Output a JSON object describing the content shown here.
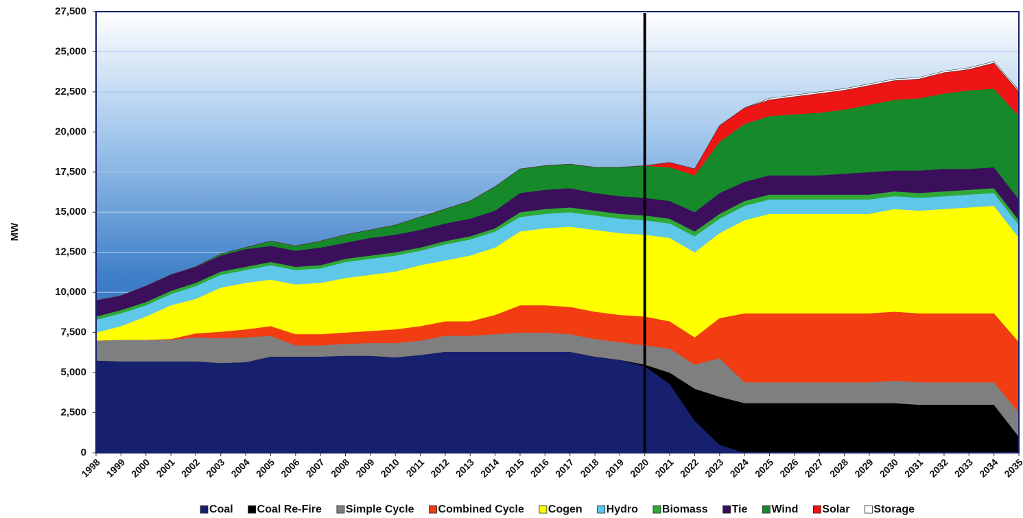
{
  "chart_data": {
    "type": "stacked_area",
    "y_label": "MW",
    "categories": [
      "1998",
      "1999",
      "2000",
      "2001",
      "2002",
      "2003",
      "2004",
      "2005",
      "2006",
      "2007",
      "2008",
      "2009",
      "2010",
      "2011",
      "2012",
      "2013",
      "2014",
      "2015",
      "2016",
      "2017",
      "2018",
      "2019",
      "2020",
      "2021",
      "2022",
      "2023",
      "2024",
      "2025",
      "2026",
      "2027",
      "2028",
      "2029",
      "2030",
      "2031",
      "2032",
      "2033",
      "2034",
      "2035"
    ],
    "vline_category": "2020",
    "ylim": [
      0,
      27500
    ],
    "yticks": [
      0,
      {
        "value": 2500,
        "label": "2,500"
      },
      {
        "value": 5000,
        "label": "5,000"
      },
      {
        "value": 7500,
        "label": "7,500"
      },
      {
        "value": 10000,
        "label": "10,000"
      },
      {
        "value": 12500,
        "label": "12,500"
      },
      {
        "value": 15000,
        "label": "15,000"
      },
      {
        "value": 17500,
        "label": "17,500"
      },
      {
        "value": 20000,
        "label": "20,000"
      },
      {
        "value": 22500,
        "label": "22,500"
      },
      {
        "value": 25000,
        "label": "25,000"
      },
      {
        "value": 27500,
        "label": "27,500"
      }
    ],
    "grid": true,
    "legend": "bottom",
    "series": [
      {
        "name": "Coal",
        "color": "#17206e",
        "values": [
          5750,
          5700,
          5700,
          5700,
          5700,
          5600,
          5650,
          6000,
          6000,
          6000,
          6050,
          6050,
          5950,
          6100,
          6300,
          6300,
          6300,
          6300,
          6300,
          6300,
          6000,
          5800,
          5400,
          4300,
          2000,
          500,
          0,
          0,
          0,
          0,
          0,
          0,
          0,
          0,
          0,
          0,
          0,
          0
        ]
      },
      {
        "name": "Coal Re-Fire",
        "color": "#000000",
        "values": [
          0,
          0,
          0,
          0,
          0,
          0,
          0,
          0,
          0,
          0,
          0,
          0,
          0,
          0,
          0,
          0,
          0,
          0,
          0,
          0,
          0,
          0,
          100,
          700,
          2000,
          3000,
          3100,
          3100,
          3100,
          3100,
          3100,
          3100,
          3100,
          3000,
          3000,
          3000,
          3000,
          1000
        ]
      },
      {
        "name": "Simple Cycle",
        "color": "#7f7f7f",
        "values": [
          1250,
          1350,
          1350,
          1350,
          1500,
          1550,
          1550,
          1300,
          700,
          700,
          750,
          800,
          900,
          900,
          1000,
          1000,
          1100,
          1200,
          1200,
          1100,
          1100,
          1100,
          1200,
          1500,
          1500,
          2400,
          1300,
          1300,
          1300,
          1300,
          1300,
          1300,
          1400,
          1400,
          1400,
          1400,
          1400,
          1500
        ]
      },
      {
        "name": "Combined Cycle",
        "color": "#f23d12",
        "values": [
          0,
          0,
          0,
          50,
          250,
          400,
          500,
          600,
          700,
          700,
          700,
          750,
          850,
          900,
          900,
          900,
          1200,
          1700,
          1700,
          1700,
          1700,
          1700,
          1800,
          1700,
          1700,
          2500,
          4300,
          4300,
          4300,
          4300,
          4300,
          4300,
          4300,
          4300,
          4300,
          4300,
          4300,
          4400
        ]
      },
      {
        "name": "Cogen",
        "color": "#ffff00",
        "values": [
          500,
          850,
          1450,
          2100,
          2150,
          2750,
          2900,
          2900,
          3100,
          3200,
          3400,
          3500,
          3600,
          3800,
          3800,
          4100,
          4200,
          4600,
          4800,
          5000,
          5100,
          5100,
          5100,
          5200,
          5300,
          5300,
          5800,
          6200,
          6200,
          6200,
          6200,
          6200,
          6400,
          6400,
          6500,
          6600,
          6700,
          6500
        ]
      },
      {
        "name": "Hydro",
        "color": "#5fc7e8",
        "values": [
          800,
          800,
          700,
          700,
          800,
          800,
          800,
          900,
          900,
          900,
          1000,
          1000,
          1000,
          900,
          1000,
          1000,
          1000,
          900,
          900,
          900,
          900,
          900,
          900,
          900,
          1000,
          900,
          900,
          900,
          900,
          900,
          900,
          900,
          800,
          800,
          800,
          800,
          800,
          800
        ]
      },
      {
        "name": "Biomass",
        "color": "#2fa836",
        "values": [
          200,
          200,
          200,
          200,
          200,
          200,
          200,
          200,
          200,
          200,
          200,
          200,
          200,
          200,
          200,
          200,
          200,
          300,
          300,
          300,
          300,
          300,
          300,
          300,
          300,
          300,
          300,
          300,
          300,
          300,
          300,
          300,
          300,
          300,
          300,
          300,
          300,
          300
        ]
      },
      {
        "name": "Tie",
        "color": "#3b0f5c",
        "values": [
          1000,
          900,
          1000,
          1000,
          1000,
          1000,
          1100,
          1000,
          1000,
          1100,
          1000,
          1100,
          1100,
          1100,
          1100,
          1100,
          1100,
          1200,
          1200,
          1200,
          1100,
          1100,
          1100,
          1100,
          1200,
          1300,
          1200,
          1200,
          1200,
          1200,
          1300,
          1400,
          1300,
          1400,
          1400,
          1300,
          1300,
          1300
        ]
      },
      {
        "name": "Wind",
        "color": "#168a2b",
        "values": [
          0,
          0,
          0,
          0,
          0,
          100,
          100,
          300,
          300,
          400,
          500,
          500,
          600,
          800,
          900,
          1100,
          1500,
          1500,
          1500,
          1500,
          1600,
          1800,
          2000,
          2100,
          2300,
          3200,
          3600,
          3700,
          3800,
          3900,
          4000,
          4200,
          4400,
          4500,
          4700,
          4900,
          4900,
          5200
        ]
      },
      {
        "name": "Solar",
        "color": "#ee1515",
        "values": [
          0,
          0,
          0,
          0,
          0,
          0,
          0,
          0,
          0,
          0,
          0,
          0,
          0,
          0,
          0,
          0,
          0,
          0,
          0,
          0,
          0,
          0,
          0,
          300,
          400,
          1000,
          1000,
          1000,
          1100,
          1200,
          1200,
          1200,
          1200,
          1200,
          1300,
          1300,
          1600,
          1500
        ]
      },
      {
        "name": "Storage",
        "color": "#ffffff",
        "values": [
          0,
          0,
          0,
          0,
          0,
          0,
          0,
          0,
          0,
          0,
          0,
          0,
          0,
          0,
          0,
          0,
          0,
          0,
          0,
          0,
          0,
          0,
          0,
          0,
          0,
          0,
          0,
          100,
          100,
          100,
          100,
          100,
          100,
          100,
          100,
          100,
          100,
          100
        ]
      }
    ]
  }
}
